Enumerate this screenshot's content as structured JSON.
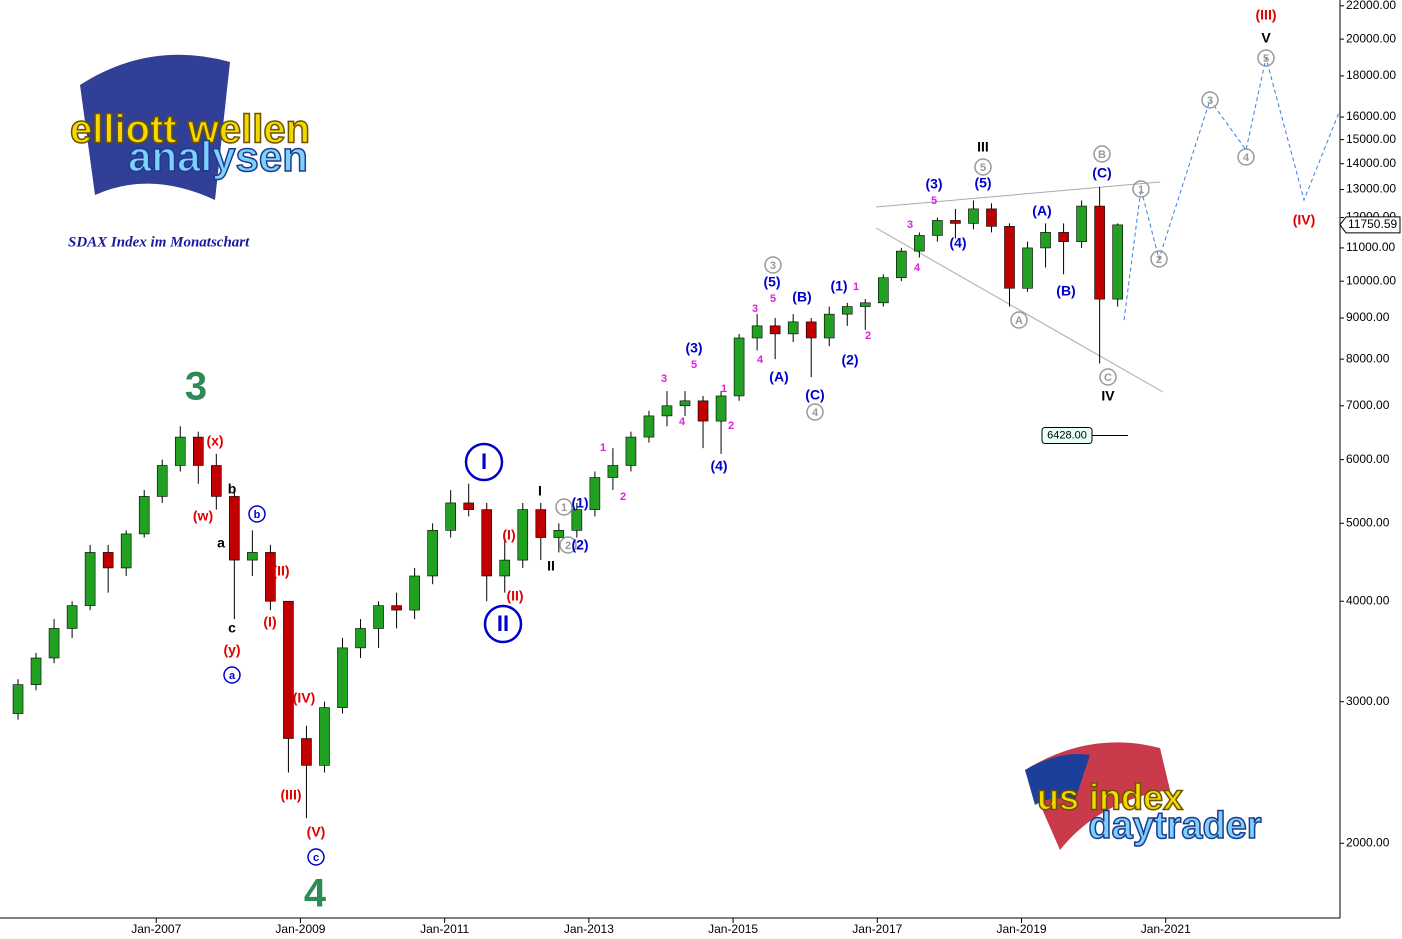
{
  "chart_data": {
    "type": "candlestick",
    "subtitle": "SDAX Index im Monatschart",
    "log_scale": true,
    "up_color": "#22a022",
    "down_color": "#c00000",
    "x": [
      "2005-01",
      "2005-04",
      "2005-07",
      "2005-10",
      "2006-01",
      "2006-04",
      "2006-07",
      "2006-10",
      "2007-01",
      "2007-04",
      "2007-07",
      "2007-10",
      "2008-01",
      "2008-04",
      "2008-07",
      "2008-10",
      "2009-01",
      "2009-04",
      "2009-07",
      "2009-10",
      "2010-01",
      "2010-04",
      "2010-07",
      "2010-10",
      "2011-01",
      "2011-04",
      "2011-07",
      "2011-10",
      "2012-01",
      "2012-04",
      "2012-07",
      "2012-10",
      "2013-01",
      "2013-04",
      "2013-07",
      "2013-10",
      "2014-01",
      "2014-04",
      "2014-07",
      "2014-10",
      "2015-01",
      "2015-04",
      "2015-07",
      "2015-10",
      "2016-01",
      "2016-04",
      "2016-07",
      "2016-10",
      "2017-01",
      "2017-04",
      "2017-07",
      "2017-10",
      "2018-01",
      "2018-04",
      "2018-07",
      "2018-10",
      "2019-01",
      "2019-04",
      "2019-07",
      "2019-10",
      "2020-01",
      "2020-04"
    ],
    "open": [
      2900,
      3150,
      3400,
      3700,
      3950,
      4600,
      4400,
      4850,
      5400,
      5900,
      6400,
      5900,
      5400,
      4500,
      4600,
      4000,
      2700,
      2500,
      2950,
      3500,
      3700,
      3950,
      3900,
      4300,
      4900,
      5300,
      5200,
      4300,
      4500,
      5200,
      4800,
      4900,
      5200,
      5700,
      5900,
      6400,
      6800,
      7000,
      7100,
      6700,
      7200,
      8500,
      8800,
      8600,
      8900,
      8500,
      9100,
      9300,
      9400,
      10100,
      10900,
      11400,
      11900,
      11800,
      12300,
      11700,
      9800,
      11000,
      11500,
      11200,
      12400,
      9500
    ],
    "high": [
      3200,
      3450,
      3800,
      4000,
      4700,
      4700,
      4900,
      5500,
      6000,
      6600,
      6500,
      6100,
      5500,
      4900,
      4700,
      4000,
      2800,
      3000,
      3600,
      3800,
      4000,
      4100,
      4400,
      5000,
      5500,
      5600,
      5300,
      4800,
      5300,
      5300,
      5000,
      5300,
      5800,
      6200,
      6500,
      6900,
      7300,
      7300,
      7200,
      7300,
      8600,
      9100,
      9000,
      9100,
      9000,
      9300,
      9400,
      9500,
      10200,
      11000,
      11500,
      12000,
      12300,
      12600,
      12500,
      11800,
      11200,
      11800,
      11800,
      12600,
      13100,
      11800
    ],
    "low": [
      2850,
      3100,
      3350,
      3600,
      3900,
      4100,
      4300,
      4800,
      5300,
      5800,
      5600,
      5200,
      3800,
      4300,
      3900,
      2450,
      2150,
      2450,
      2900,
      3400,
      3500,
      3700,
      3800,
      4200,
      4800,
      5100,
      4000,
      4100,
      4400,
      4500,
      4600,
      4800,
      5100,
      5500,
      5800,
      6300,
      6600,
      6800,
      6200,
      6100,
      7100,
      8200,
      8000,
      8400,
      7600,
      8300,
      8800,
      8700,
      9300,
      10000,
      10700,
      11200,
      11300,
      11600,
      11500,
      9300,
      9700,
      10400,
      10200,
      11000,
      7900,
      9300
    ],
    "close": [
      3150,
      3400,
      3700,
      3950,
      4600,
      4400,
      4850,
      5400,
      5900,
      6400,
      5900,
      5400,
      4500,
      4600,
      4000,
      2700,
      2500,
      2950,
      3500,
      3700,
      3950,
      3900,
      4300,
      4900,
      5300,
      5200,
      4300,
      4500,
      5200,
      4800,
      4900,
      5200,
      5700,
      5900,
      6400,
      6800,
      7000,
      7100,
      6700,
      7200,
      8500,
      8800,
      8600,
      8900,
      8500,
      9100,
      9300,
      9400,
      10100,
      10900,
      11400,
      11900,
      11800,
      12300,
      11700,
      9800,
      11000,
      11500,
      11200,
      12400,
      9500,
      11750
    ],
    "xlim": [
      "2004-11",
      "2023-06"
    ],
    "xticks": [
      {
        "value": "2007-01",
        "label": "Jan-2007"
      },
      {
        "value": "2009-01",
        "label": "Jan-2009"
      },
      {
        "value": "2011-01",
        "label": "Jan-2011"
      },
      {
        "value": "2013-01",
        "label": "Jan-2013"
      },
      {
        "value": "2015-01",
        "label": "Jan-2015"
      },
      {
        "value": "2017-01",
        "label": "Jan-2017"
      },
      {
        "value": "2019-01",
        "label": "Jan-2019"
      },
      {
        "value": "2021-01",
        "label": "Jan-2021"
      }
    ],
    "ylim": [
      1615,
      22370
    ],
    "yticks": [
      {
        "value": 2000,
        "label": "2000.00"
      },
      {
        "value": 3000,
        "label": "3000.00"
      },
      {
        "value": 4000,
        "label": "4000.00"
      },
      {
        "value": 5000,
        "label": "5000.00"
      },
      {
        "value": 6000,
        "label": "6000.00"
      },
      {
        "value": 7000,
        "label": "7000.00"
      },
      {
        "value": 8000,
        "label": "8000.00"
      },
      {
        "value": 9000,
        "label": "9000.00"
      },
      {
        "value": 10000,
        "label": "10000.00"
      },
      {
        "value": 11000,
        "label": "11000.00"
      },
      {
        "value": 12000,
        "label": "12000.00"
      },
      {
        "value": 13000,
        "label": "13000.00"
      },
      {
        "value": 14000,
        "label": "14000.00"
      },
      {
        "value": 15000,
        "label": "15000.00"
      },
      {
        "value": 16000,
        "label": "16000.00"
      },
      {
        "value": 18000,
        "label": "18000.00"
      },
      {
        "value": 20000,
        "label": "20000.00"
      },
      {
        "value": 22000,
        "label": "22000.00"
      }
    ],
    "last_price": {
      "value": 11750.59,
      "label": "11750.59"
    },
    "level": {
      "value": 6428,
      "label": "6428.00"
    },
    "annotations": [
      {
        "text": "3",
        "color": "#2e8b57"
      },
      {
        "text": "4",
        "color": "#2e8b57"
      },
      {
        "text": "(x)",
        "color": "#e00000"
      },
      {
        "text": "(w)",
        "color": "#e00000"
      },
      {
        "text": "b",
        "color": "#000000"
      },
      {
        "text": "b",
        "color": "#0000cc",
        "circled": true
      },
      {
        "text": "a",
        "color": "#000000"
      },
      {
        "text": "c",
        "color": "#000000"
      },
      {
        "text": "(y)",
        "color": "#e00000"
      },
      {
        "text": "a",
        "color": "#0000cc",
        "circled": true
      },
      {
        "text": "(II)",
        "color": "#e00000"
      },
      {
        "text": "(I)",
        "color": "#e00000"
      },
      {
        "text": "(IV)",
        "color": "#e00000"
      },
      {
        "text": "(III)",
        "color": "#e00000"
      },
      {
        "text": "(V)",
        "color": "#e00000"
      },
      {
        "text": "c",
        "color": "#0000cc",
        "circled": true
      },
      {
        "text": "I",
        "color": "#0000cc",
        "circled": true
      },
      {
        "text": "II",
        "color": "#0000cc",
        "circled": true
      },
      {
        "text": "(I)",
        "color": "#e00000"
      },
      {
        "text": "(II)",
        "color": "#e00000"
      },
      {
        "text": "I",
        "color": "#000000"
      },
      {
        "text": "II",
        "color": "#000000"
      },
      {
        "text": "1",
        "color": "#999999",
        "circled": true
      },
      {
        "text": "2",
        "color": "#999999",
        "circled": true
      },
      {
        "text": "(1)",
        "color": "#0000cc"
      },
      {
        "text": "(2)",
        "color": "#0000cc"
      },
      {
        "text": "1",
        "color": "#e020e0"
      },
      {
        "text": "2",
        "color": "#e020e0"
      },
      {
        "text": "3",
        "color": "#e020e0"
      },
      {
        "text": "4",
        "color": "#e020e0"
      },
      {
        "text": "(3)",
        "color": "#0000cc"
      },
      {
        "text": "5",
        "color": "#e020e0"
      },
      {
        "text": "1",
        "color": "#e020e0"
      },
      {
        "text": "2",
        "color": "#e020e0"
      },
      {
        "text": "(4)",
        "color": "#0000cc"
      },
      {
        "text": "3",
        "color": "#e020e0"
      },
      {
        "text": "4",
        "color": "#e020e0"
      },
      {
        "text": "3",
        "color": "#999999",
        "circled": true
      },
      {
        "text": "(5)",
        "color": "#0000cc"
      },
      {
        "text": "5",
        "color": "#e020e0"
      },
      {
        "text": "(A)",
        "color": "#0000cc"
      },
      {
        "text": "(B)",
        "color": "#0000cc"
      },
      {
        "text": "(C)",
        "color": "#0000cc"
      },
      {
        "text": "4",
        "color": "#999999",
        "circled": true
      },
      {
        "text": "(1)",
        "color": "#0000cc"
      },
      {
        "text": "1",
        "color": "#e020e0"
      },
      {
        "text": "2",
        "color": "#e020e0"
      },
      {
        "text": "(2)",
        "color": "#0000cc"
      },
      {
        "text": "3",
        "color": "#e020e0"
      },
      {
        "text": "4",
        "color": "#e020e0"
      },
      {
        "text": "(3)",
        "color": "#0000cc"
      },
      {
        "text": "5",
        "color": "#e020e0"
      },
      {
        "text": "(4)",
        "color": "#0000cc"
      },
      {
        "text": "III",
        "color": "#000000"
      },
      {
        "text": "5",
        "color": "#999999",
        "circled": true
      },
      {
        "text": "(5)",
        "color": "#0000cc"
      },
      {
        "text": "(A)",
        "color": "#0000cc"
      },
      {
        "text": "(B)",
        "color": "#0000cc"
      },
      {
        "text": "A",
        "color": "#999999",
        "circled": true
      },
      {
        "text": "B",
        "color": "#999999",
        "circled": true
      },
      {
        "text": "(C)",
        "color": "#0000cc"
      },
      {
        "text": "C",
        "color": "#999999",
        "circled": true
      },
      {
        "text": "IV",
        "color": "#000000"
      },
      {
        "text": "1",
        "color": "#999999",
        "circled": true
      },
      {
        "text": "2",
        "color": "#999999",
        "circled": true
      },
      {
        "text": "3",
        "color": "#999999",
        "circled": true
      },
      {
        "text": "4",
        "color": "#999999",
        "circled": true
      },
      {
        "text": "5",
        "color": "#999999",
        "circled": true
      },
      {
        "text": "V",
        "color": "#000000"
      },
      {
        "text": "(III)",
        "color": "#e00000"
      },
      {
        "text": "(IV)",
        "color": "#e00000"
      }
    ]
  },
  "logos": {
    "top": [
      "elliott wellen",
      "analysen"
    ],
    "bottom": [
      "us index",
      "daytrader"
    ]
  }
}
